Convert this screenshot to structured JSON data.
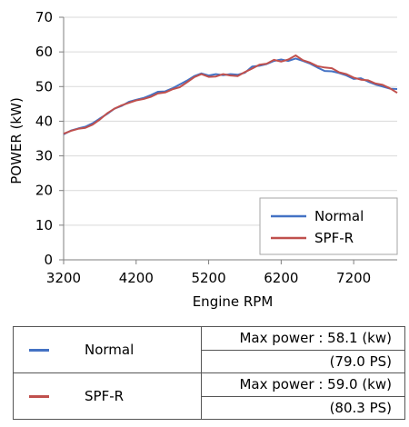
{
  "chart_data": {
    "type": "line",
    "xlabel": "Engine RPM",
    "ylabel": "POWER (kW)",
    "xlim": [
      3200,
      7800
    ],
    "ylim": [
      0,
      70
    ],
    "xticks": [
      3200,
      4200,
      5200,
      6200,
      7200
    ],
    "yticks": [
      0,
      10,
      20,
      30,
      40,
      50,
      60,
      70
    ],
    "grid": "horizontal",
    "legend_position": "bottom-right",
    "series": [
      {
        "name": "Normal",
        "color": "#4472c4",
        "x": [
          3200,
          3300,
          3400,
          3500,
          3600,
          3700,
          3800,
          3900,
          4000,
          4100,
          4200,
          4300,
          4400,
          4500,
          4600,
          4700,
          4800,
          4900,
          5000,
          5100,
          5200,
          5300,
          5400,
          5500,
          5600,
          5700,
          5800,
          5900,
          6000,
          6100,
          6200,
          6300,
          6400,
          6500,
          6600,
          6700,
          6800,
          6900,
          7000,
          7100,
          7200,
          7300,
          7400,
          7500,
          7600,
          7700,
          7800
        ],
        "y": [
          36.2,
          37.3,
          37.9,
          38.4,
          39.4,
          40.8,
          42.1,
          43.6,
          44.4,
          45.6,
          46.2,
          46.7,
          47.5,
          48.5,
          48.6,
          49.5,
          50.6,
          51.7,
          53.0,
          53.8,
          53.2,
          53.6,
          53.3,
          53.6,
          53.4,
          54.0,
          55.8,
          56.0,
          56.5,
          57.4,
          57.8,
          57.4,
          58.1,
          57.4,
          56.6,
          55.5,
          54.5,
          54.4,
          53.9,
          53.2,
          52.2,
          52.4,
          51.4,
          50.6,
          50.0,
          49.4,
          49.3
        ]
      },
      {
        "name": "SPF-R",
        "color": "#c0504d",
        "x": [
          3200,
          3300,
          3400,
          3500,
          3600,
          3700,
          3800,
          3900,
          4000,
          4100,
          4200,
          4300,
          4400,
          4500,
          4600,
          4700,
          4800,
          4900,
          5000,
          5100,
          5200,
          5300,
          5400,
          5500,
          5600,
          5700,
          5800,
          5900,
          6000,
          6100,
          6200,
          6300,
          6400,
          6500,
          6600,
          6700,
          6800,
          6900,
          7000,
          7100,
          7200,
          7300,
          7400,
          7500,
          7600,
          7700,
          7800
        ],
        "y": [
          36.4,
          37.2,
          37.8,
          38.1,
          39.0,
          40.5,
          42.3,
          43.6,
          44.6,
          45.3,
          46.0,
          46.4,
          47.0,
          48.0,
          48.3,
          49.2,
          49.8,
          51.2,
          52.7,
          53.6,
          52.8,
          52.9,
          53.6,
          53.2,
          53.0,
          54.2,
          55.2,
          56.3,
          56.6,
          57.7,
          57.2,
          57.8,
          59.0,
          57.6,
          56.9,
          55.9,
          55.5,
          55.3,
          54.1,
          53.6,
          52.6,
          52.0,
          51.8,
          50.9,
          50.5,
          49.5,
          48.2
        ]
      }
    ]
  },
  "summary": {
    "rows": [
      {
        "name": "Normal",
        "color": "#4472c4",
        "max_power": "Max power : 58.1 (kw)",
        "ps": "(79.0 PS)"
      },
      {
        "name": "SPF-R",
        "color": "#c0504d",
        "max_power": "Max power : 59.0 (kw)",
        "ps": "(80.3 PS)"
      }
    ]
  }
}
